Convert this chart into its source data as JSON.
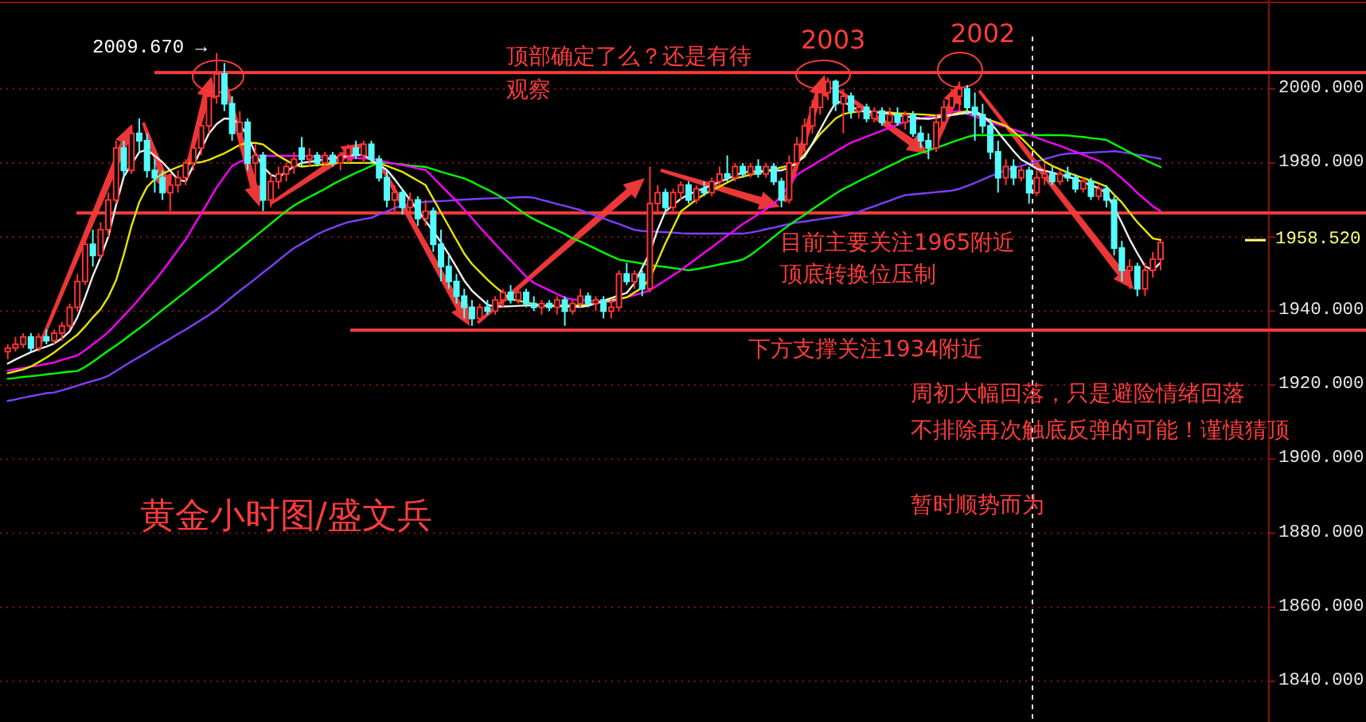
{
  "chart_data": {
    "type": "candlestick",
    "title": "黄金小时图/盛文兵",
    "categories": [
      null,
      null,
      null,
      null,
      null,
      null,
      null,
      null,
      null,
      null,
      null,
      null,
      null,
      null,
      null,
      null,
      null,
      null,
      null,
      null,
      null,
      null,
      null,
      null,
      null,
      null,
      null,
      null,
      null,
      null,
      null,
      null,
      null,
      null,
      null,
      null,
      null,
      null,
      null,
      null,
      null,
      null,
      null,
      null,
      null,
      null,
      null,
      null,
      null,
      null,
      null,
      null,
      null,
      null,
      null,
      null,
      null,
      null,
      null,
      null,
      null,
      null,
      null,
      null,
      null,
      null,
      null,
      null,
      null,
      null,
      null,
      null,
      null,
      null,
      null,
      null,
      null,
      null,
      null,
      null,
      null,
      null,
      null,
      null,
      null,
      null,
      null,
      null,
      null,
      null,
      null,
      null,
      null,
      null,
      null,
      null,
      null,
      null,
      null,
      null,
      null,
      null,
      null,
      null,
      null,
      null,
      null,
      null,
      null,
      null,
      null,
      null,
      null,
      null,
      null,
      null,
      null,
      null,
      null,
      null,
      null,
      null,
      null,
      null,
      null,
      null,
      null,
      null,
      null,
      null,
      null,
      null,
      null,
      null,
      null,
      null,
      null,
      null,
      null,
      null,
      null,
      null,
      null,
      null,
      null,
      null,
      null,
      null,
      null,
      null
    ],
    "ohlc": [
      [
        1929,
        1931,
        1927,
        1930
      ],
      [
        1930,
        1933,
        1929,
        1931
      ],
      [
        1931,
        1934,
        1930,
        1933
      ],
      [
        1933,
        1934,
        1929,
        1930
      ],
      [
        1930,
        1934,
        1929,
        1933
      ],
      [
        1933,
        1935,
        1931,
        1932
      ],
      [
        1932,
        1935,
        1931,
        1934
      ],
      [
        1934,
        1937,
        1932,
        1936
      ],
      [
        1936,
        1942,
        1935,
        1941
      ],
      [
        1941,
        1950,
        1940,
        1948
      ],
      [
        1948,
        1960,
        1947,
        1958
      ],
      [
        1958,
        1962,
        1952,
        1955
      ],
      [
        1955,
        1964,
        1954,
        1962
      ],
      [
        1962,
        1972,
        1960,
        1970
      ],
      [
        1970,
        1986,
        1969,
        1984
      ],
      [
        1984,
        1986,
        1976,
        1978
      ],
      [
        1978,
        1990,
        1977,
        1988
      ],
      [
        1988,
        1992,
        1983,
        1986
      ],
      [
        1986,
        1988,
        1976,
        1978
      ],
      [
        1978,
        1981,
        1972,
        1976
      ],
      [
        1976,
        1978,
        1970,
        1972
      ],
      [
        1972,
        1976,
        1967,
        1974
      ],
      [
        1974,
        1978,
        1972,
        1976
      ],
      [
        1976,
        1981,
        1974,
        1980
      ],
      [
        1980,
        1985,
        1978,
        1984
      ],
      [
        1984,
        1991,
        1982,
        1990
      ],
      [
        1990,
        2000,
        1988,
        1998
      ],
      [
        1998,
        2009.67,
        1996,
        2004
      ],
      [
        2004,
        2007,
        1994,
        1996
      ],
      [
        1996,
        1998,
        1986,
        1988
      ],
      [
        1988,
        1994,
        1984,
        1991
      ],
      [
        1991,
        1992,
        1978,
        1980
      ],
      [
        1980,
        1985,
        1974,
        1982
      ],
      [
        1982,
        1983,
        1967,
        1970
      ],
      [
        1970,
        1977,
        1968,
        1975
      ],
      [
        1975,
        1979,
        1973,
        1977
      ],
      [
        1977,
        1980,
        1975,
        1979
      ],
      [
        1979,
        1983,
        1977,
        1981
      ],
      [
        1984,
        1987,
        1979,
        1981
      ],
      [
        1981,
        1984,
        1979,
        1982
      ],
      [
        1982,
        1983,
        1979,
        1980
      ],
      [
        1980,
        1983,
        1979,
        1982
      ],
      [
        1982,
        1983,
        1979,
        1980
      ],
      [
        1980,
        1983,
        1978,
        1982
      ],
      [
        1982,
        1985,
        1980,
        1984
      ],
      [
        1984,
        1986,
        1981,
        1982
      ],
      [
        1982,
        1986,
        1980,
        1985
      ],
      [
        1985,
        1986,
        1980,
        1981
      ],
      [
        1981,
        1982,
        1975,
        1976
      ],
      [
        1976,
        1978,
        1968,
        1970
      ],
      [
        1970,
        1974,
        1966,
        1972
      ],
      [
        1972,
        1973,
        1966,
        1968
      ],
      [
        1968,
        1972,
        1966,
        1970
      ],
      [
        1970,
        1971,
        1963,
        1965
      ],
      [
        1965,
        1970,
        1963,
        1967
      ],
      [
        1967,
        1968,
        1956,
        1958
      ],
      [
        1958,
        1962,
        1948,
        1952
      ],
      [
        1952,
        1955,
        1946,
        1948
      ],
      [
        1948,
        1950,
        1942,
        1944
      ],
      [
        1944,
        1946,
        1938,
        1941
      ],
      [
        1941,
        1943,
        1936,
        1938
      ],
      [
        1938,
        1942,
        1937,
        1941
      ],
      [
        1941,
        1943,
        1939,
        1940
      ],
      [
        1940,
        1944,
        1939,
        1943
      ],
      [
        1943,
        1946,
        1941,
        1945
      ],
      [
        1945,
        1947,
        1942,
        1943
      ],
      [
        1943,
        1946,
        1942,
        1945
      ],
      [
        1945,
        1946,
        1941,
        1942
      ],
      [
        1942,
        1944,
        1940,
        1941
      ],
      [
        1941,
        1943,
        1939,
        1942
      ],
      [
        1942,
        1943,
        1940,
        1941
      ],
      [
        1941,
        1944,
        1939,
        1943
      ],
      [
        1943,
        1944,
        1936,
        1940
      ],
      [
        1940,
        1943,
        1939,
        1942
      ],
      [
        1942,
        1946,
        1941,
        1944
      ],
      [
        1944,
        1945,
        1941,
        1942
      ],
      [
        1942,
        1944,
        1940,
        1943
      ],
      [
        1943,
        1944,
        1938,
        1940
      ],
      [
        1940,
        1943,
        1938,
        1941
      ],
      [
        1941,
        1951,
        1940,
        1950
      ],
      [
        1950,
        1953,
        1947,
        1948
      ],
      [
        1948,
        1951,
        1946,
        1950
      ],
      [
        1950,
        1951,
        1944,
        1946
      ],
      [
        1946,
        1979,
        1945,
        1969
      ],
      [
        1969,
        1974,
        1966,
        1972
      ],
      [
        1972,
        1973,
        1966,
        1968
      ],
      [
        1968,
        1973,
        1967,
        1972
      ],
      [
        1972,
        1975,
        1970,
        1974
      ],
      [
        1974,
        1975,
        1969,
        1970
      ],
      [
        1970,
        1974,
        1969,
        1973
      ],
      [
        1973,
        1975,
        1971,
        1972
      ],
      [
        1972,
        1976,
        1971,
        1975
      ],
      [
        1975,
        1979,
        1974,
        1977
      ],
      [
        1977,
        1982,
        1975,
        1976
      ],
      [
        1976,
        1980,
        1975,
        1979
      ],
      [
        1979,
        1980,
        1976,
        1977
      ],
      [
        1977,
        1980,
        1976,
        1979
      ],
      [
        1979,
        1981,
        1976,
        1977
      ],
      [
        1977,
        1980,
        1976,
        1979
      ],
      [
        1979,
        1980,
        1974,
        1975
      ],
      [
        1975,
        1976,
        1968,
        1970
      ],
      [
        1970,
        1982,
        1969,
        1980
      ],
      [
        1980,
        1987,
        1978,
        1985
      ],
      [
        1985,
        1992,
        1983,
        1990
      ],
      [
        1990,
        1997,
        1988,
        1995
      ],
      [
        1995,
        2001,
        1993,
        1999
      ],
      [
        1999,
        2003,
        1997,
        2002
      ],
      [
        2002,
        2002.5,
        1994,
        1996
      ],
      [
        1996,
        2000,
        1988,
        1998
      ],
      [
        1998,
        1999,
        1992,
        1994
      ],
      [
        1994,
        1996,
        1992,
        1995
      ],
      [
        1995,
        1996,
        1991,
        1992
      ],
      [
        1992,
        1995,
        1991,
        1994
      ],
      [
        1994,
        1995,
        1990,
        1991
      ],
      [
        1991,
        1995,
        1990,
        1993
      ],
      [
        1993,
        1995,
        1990,
        1991
      ],
      [
        1991,
        1994,
        1989,
        1993
      ],
      [
        1993,
        1994,
        1987,
        1988
      ],
      [
        1988,
        1990,
        1984,
        1986
      ],
      [
        1986,
        1988,
        1981,
        1984
      ],
      [
        1984,
        1993,
        1983,
        1991
      ],
      [
        1991,
        1997,
        1989,
        1995
      ],
      [
        1995,
        2000,
        1993,
        1998
      ],
      [
        1998,
        2002,
        1994,
        2000
      ],
      [
        2000,
        2001,
        1993,
        1995
      ],
      [
        1995,
        1999,
        1986,
        1993
      ],
      [
        1993,
        1996,
        1988,
        1990
      ],
      [
        1990,
        1992,
        1981,
        1983
      ],
      [
        1983,
        1986,
        1972,
        1976
      ],
      [
        1976,
        1981,
        1974,
        1979
      ],
      [
        1979,
        1981,
        1974,
        1976
      ],
      [
        1976,
        1979,
        1975,
        1978
      ],
      [
        1978,
        1979,
        1969,
        1972
      ],
      [
        1972,
        1978,
        1971,
        1976
      ],
      [
        1976,
        1980,
        1974,
        1977
      ],
      [
        1977,
        1979,
        1974,
        1975
      ],
      [
        1975,
        1978,
        1974,
        1977
      ],
      [
        1977,
        1979,
        1975,
        1976
      ],
      [
        1976,
        1977,
        1972,
        1973
      ],
      [
        1973,
        1976,
        1972,
        1975
      ],
      [
        1975,
        1976,
        1970,
        1971
      ],
      [
        1971,
        1974,
        1970,
        1973
      ],
      [
        1973,
        1974,
        1968,
        1970
      ],
      [
        1970,
        1971,
        1955,
        1957
      ],
      [
        1957,
        1959,
        1948,
        1951
      ],
      [
        1951,
        1954,
        1946,
        1952
      ],
      [
        1952,
        1953,
        1944,
        1946
      ],
      [
        1946,
        1953,
        1944,
        1951
      ],
      [
        1951,
        1956,
        1949,
        1954
      ],
      [
        1954,
        1959,
        1951,
        1958.52
      ]
    ],
    "series": [
      {
        "type": "line",
        "color": "#7f3fff",
        "values": [
          1915.7,
          1916.1,
          1916.6,
          1917,
          1917.4,
          1917.8,
          1918,
          1918.6,
          1919.2,
          1919.8,
          1920.5,
          1921.1,
          1921.7,
          1922.5,
          1923.8,
          1925.1,
          1926.4,
          1927.6,
          1928.8,
          1930.1,
          1931.3,
          1932.5,
          1933.8,
          1935,
          1936.3,
          1937.6,
          1938.9,
          1940.4,
          1942.1,
          1943.8,
          1945.5,
          1947.1,
          1948.7,
          1950.4,
          1952,
          1953.7,
          1955.4,
          1957,
          1958.2,
          1959.4,
          1960.7,
          1961.7,
          1962.5,
          1963.3,
          1964,
          1964.4,
          1964.8,
          1965.2,
          1966.1,
          1966.9,
          1967.8,
          1968.5,
          1968.8,
          1969.2,
          1969.5,
          1969.6,
          1969.7,
          1969.8,
          1970,
          1970.1,
          1970.2,
          1970.3,
          1970.4,
          1970.5,
          1970.5,
          1970.6,
          1970.7,
          1970.8,
          1970.6,
          1970,
          1969.5,
          1968.9,
          1968.4,
          1967.8,
          1967.3,
          1966.5,
          1965.7,
          1965,
          1964.2,
          1963.5,
          1962.7,
          1961.9,
          1961.6,
          1961.5,
          1961.4,
          1961.3,
          1961.2,
          1961,
          1960.9,
          1960.9,
          1960.9,
          1960.9,
          1960.9,
          1960.9,
          1960.9,
          1960.9,
          1961.2,
          1961.6,
          1962.1,
          1962.5,
          1963,
          1963.5,
          1963.9,
          1964.2,
          1964.5,
          1964.8,
          1965.1,
          1965.4,
          1965.7,
          1966.1,
          1966.8,
          1967.6,
          1968.3,
          1969.1,
          1969.8,
          1970.6,
          1971.3,
          1971.5,
          1971.7,
          1971.9,
          1972.1,
          1972.3,
          1972.5,
          1973,
          1973.8,
          1974.6,
          1975.5,
          1976.4,
          1977.2,
          1978,
          1978.6,
          1979.2,
          1979.8,
          1980.4,
          1981,
          1981.6,
          1982.2,
          1982.5,
          1982.6,
          1982.7,
          1982.8,
          1982.9,
          1983,
          1983.2,
          1982.9,
          1982.6,
          1982.2,
          1981.9,
          1981.5,
          1981.1
        ]
      },
      {
        "type": "line",
        "color": "#00ff00",
        "values": [
          1921.7,
          1921.9,
          1922.2,
          1922.4,
          1922.6,
          1922.9,
          1923.1,
          1923.4,
          1923.6,
          1923.8,
          1924.9,
          1926.3,
          1927.8,
          1929.3,
          1930.7,
          1932.2,
          1933.8,
          1935.3,
          1936.9,
          1938.6,
          1940.3,
          1941.9,
          1943.6,
          1945.2,
          1946.9,
          1948.5,
          1950.2,
          1951.8,
          1953.5,
          1955.1,
          1956.8,
          1958.5,
          1960.2,
          1961.9,
          1963.6,
          1965.3,
          1967,
          1968.5,
          1969.7,
          1970.8,
          1971.9,
          1973,
          1974.2,
          1975.3,
          1976.3,
          1977.3,
          1978.2,
          1979.2,
          1980.1,
          1980,
          1979.8,
          1979.6,
          1979.3,
          1979.1,
          1978.9,
          1978.3,
          1977.6,
          1977,
          1976.4,
          1975.8,
          1974.9,
          1973.8,
          1972.8,
          1971.7,
          1970.5,
          1969,
          1967.5,
          1966,
          1964.8,
          1963.8,
          1962.8,
          1961.8,
          1960.8,
          1959.6,
          1958.8,
          1957.8,
          1956.8,
          1955.8,
          1954.8,
          1953.9,
          1953.5,
          1953.2,
          1952.8,
          1952.4,
          1952.2,
          1951.9,
          1951.6,
          1951.3,
          1951,
          1951.3,
          1951.7,
          1952.1,
          1952.6,
          1953,
          1953.4,
          1953.9,
          1955.1,
          1956.7,
          1958.3,
          1960,
          1961.7,
          1963.2,
          1964.6,
          1966,
          1967.5,
          1968.9,
          1970.3,
          1971.7,
          1973,
          1974,
          1975.1,
          1976.1,
          1977.1,
          1978.2,
          1979.2,
          1980.2,
          1981.3,
          1982,
          1982.7,
          1983.4,
          1984.1,
          1984.8,
          1985.6,
          1986.3,
          1987,
          1987.5,
          1987.5,
          1987.5,
          1987.5,
          1987.5,
          1987.5,
          1987.5,
          1987.5,
          1987.5,
          1987.5,
          1987.5,
          1987.5,
          1987.4,
          1987.2,
          1987,
          1986.7,
          1986.5,
          1986.2,
          1985.1,
          1984,
          1982.9,
          1981.8,
          1980.8,
          1979.8,
          1978.9
        ]
      },
      {
        "type": "line",
        "color": "#ff00ff",
        "values": [
          1923.9,
          1924.3,
          1924.6,
          1925,
          1925.3,
          1925.7,
          1926.1,
          1926.8,
          1927.4,
          1928,
          1929.4,
          1931,
          1932.6,
          1934.3,
          1936.5,
          1938.7,
          1940.9,
          1943.3,
          1945.8,
          1948.2,
          1950.8,
          1953.6,
          1956.5,
          1959.3,
          1962.8,
          1966.3,
          1969.8,
          1973.4,
          1976.3,
          1979.2,
          1980.3,
          1981.1,
          1981.9,
          1981.9,
          1981.9,
          1981.9,
          1981.9,
          1981.9,
          1981.9,
          1981.8,
          1981.7,
          1981.6,
          1981.5,
          1981.4,
          1981.4,
          1981.3,
          1981.2,
          1981.1,
          1980.7,
          1980.2,
          1979.8,
          1979.4,
          1979,
          1978.5,
          1978.1,
          1976,
          1973.9,
          1971.8,
          1969.7,
          1967.4,
          1965.1,
          1962.7,
          1960.4,
          1958.1,
          1955.9,
          1953.7,
          1951.5,
          1949.3,
          1947.6,
          1946.6,
          1945.6,
          1944.6,
          1943.6,
          1943.1,
          1943,
          1942.8,
          1942.7,
          1942.6,
          1942.4,
          1943.1,
          1943.7,
          1944.3,
          1944.9,
          1945.6,
          1947,
          1948.3,
          1949.7,
          1951,
          1952.6,
          1954.1,
          1955.7,
          1957.2,
          1958.8,
          1960.4,
          1961.9,
          1963.5,
          1964.8,
          1966.1,
          1967.5,
          1968.9,
          1971.2,
          1974,
          1976.8,
          1978.1,
          1979.3,
          1980.6,
          1981.8,
          1983.1,
          1984.3,
          1985.5,
          1986.3,
          1987.1,
          1987.9,
          1988.7,
          1989.5,
          1990.3,
          1991.1,
          1991.5,
          1992,
          1992.4,
          1992.9,
          1993.3,
          1993.8,
          1994,
          1993.3,
          1992.5,
          1991.8,
          1991,
          1990.3,
          1989.8,
          1989,
          1988.3,
          1987.5,
          1986.8,
          1986,
          1985.3,
          1984.6,
          1983.8,
          1983,
          1982.2,
          1981.4,
          1980.6,
          1979.4,
          1977.6,
          1975.8,
          1974,
          1971.9,
          1970.1,
          1968.3,
          1967
        ]
      },
      {
        "type": "line",
        "color": "#e6e600",
        "values": [
          1923.2,
          1923.7,
          1924.2,
          1925,
          1926.2,
          1927.4,
          1928.8,
          1930.4,
          1932,
          1933.6,
          1935.8,
          1938.3,
          1940.5,
          1943.8,
          1948.3,
          1955.2,
          1963,
          1969.4,
          1973.5,
          1975.6,
          1977.1,
          1978,
          1978.9,
          1979.7,
          1980,
          1980.2,
          1980.8,
          1981.7,
          1982.6,
          1983.7,
          1984.9,
          1985.4,
          1985.4,
          1985,
          1983.4,
          1981.9,
          1980.7,
          1979.5,
          1979,
          1979.2,
          1979.4,
          1979.6,
          1979.9,
          1980,
          1980,
          1980,
          1980,
          1980,
          1979.9,
          1979.2,
          1978.4,
          1977.6,
          1976.4,
          1975.2,
          1974,
          1970.3,
          1966.6,
          1962.9,
          1959.2,
          1955.5,
          1952.7,
          1950.6,
          1948.5,
          1946.6,
          1944.9,
          1943.2,
          1942.8,
          1942.3,
          1941.9,
          1941.5,
          1941.5,
          1941.5,
          1941.5,
          1941.5,
          1941.5,
          1941.7,
          1942.1,
          1942.5,
          1942.9,
          1943.3,
          1943.7,
          1945,
          1946.3,
          1948.8,
          1953.5,
          1958.3,
          1962.6,
          1966.9,
          1968.5,
          1970.1,
          1971.5,
          1972.6,
          1973.6,
          1974.7,
          1975.8,
          1976.3,
          1976.8,
          1977.3,
          1977.8,
          1978.3,
          1978.8,
          1979.3,
          1979.8,
          1982.4,
          1985,
          1987.8,
          1989.9,
          1992,
          1993.2,
          1993.6,
          1993.9,
          1993.9,
          1993.8,
          1993.7,
          1993.6,
          1993.4,
          1993.3,
          1993.2,
          1993.1,
          1993,
          1992.8,
          1992.7,
          1993.1,
          1993.6,
          1994,
          1993.3,
          1992.4,
          1991.5,
          1990.8,
          1990,
          1988.5,
          1986.7,
          1984.6,
          1982.4,
          1980.4,
          1979.2,
          1978.3,
          1977.4,
          1976.6,
          1975.9,
          1975.2,
          1974.5,
          1973.6,
          1971.4,
          1969.3,
          1966.6,
          1964,
          1961.8,
          1959.6,
          1959.2
        ]
      },
      {
        "type": "line",
        "color": "#f0f0f0",
        "values": [
          1925.8,
          1926.9,
          1927.9,
          1928.9,
          1929.7,
          1930.4,
          1931.2,
          1932.6,
          1934.5,
          1938.3,
          1943.7,
          1949.5,
          1954.4,
          1960.1,
          1968.6,
          1976.3,
          1979.6,
          1982.9,
          1983.6,
          1981.9,
          1980.2,
          1977.9,
          1975.5,
          1975,
          1979.3,
          1983.6,
          1987.9,
          1990.5,
          1992,
          1991.9,
          1990.4,
          1987.3,
          1982.6,
          1979,
          1976.8,
          1976.1,
          1977.6,
          1979.1,
          1980,
          1980.3,
          1980.6,
          1981,
          1981.3,
          1981.6,
          1981.9,
          1982.2,
          1982.1,
          1980.8,
          1979.5,
          1978.1,
          1975.6,
          1972.8,
          1970,
          1967.1,
          1964.3,
          1961.5,
          1958.6,
          1955.3,
          1951.8,
          1948.2,
          1945.5,
          1943.6,
          1941.7,
          1941.2,
          1941.2,
          1941.3,
          1941.4,
          1941.5,
          1941.5,
          1941.4,
          1941.4,
          1941.3,
          1941.3,
          1941.2,
          1941.1,
          1941.4,
          1942.1,
          1942.8,
          1943.5,
          1944.2,
          1944.9,
          1947.5,
          1951.7,
          1955.8,
          1962,
          1966.9,
          1968.6,
          1970.3,
          1971.5,
          1972.3,
          1973.2,
          1974,
          1974.9,
          1975.7,
          1976.6,
          1977.4,
          1977.7,
          1977.7,
          1977.9,
          1977.9,
          1978,
          1978.7,
          1980.2,
          1981.7,
          1985.2,
          1989,
          1992.8,
          1996.3,
          1996.5,
          1995.4,
          1994.1,
          1993.9,
          1993.7,
          1993.5,
          1993.2,
          1992.9,
          1992.6,
          1992.3,
          1992,
          1991.9,
          1992.2,
          1992.6,
          1992.9,
          1993.2,
          1993.5,
          1993.9,
          1992.9,
          1990.9,
          1988.3,
          1985.7,
          1983.2,
          1980.9,
          1979.7,
          1978.4,
          1977.9,
          1977.4,
          1976.8,
          1976.3,
          1975.6,
          1974.8,
          1974,
          1973.2,
          1971.8,
          1967.9,
          1963.8,
          1959.4,
          1955.6,
          1952.1,
          1951,
          1953.1
        ]
      }
    ],
    "ylim": [
      1829,
      2024
    ],
    "yticks": [
      {
        "value": 1840,
        "label": "1840.000"
      },
      {
        "value": 1860,
        "label": "1860.000"
      },
      {
        "value": 1880,
        "label": "1880.000"
      },
      {
        "value": 1900,
        "label": "1900.000"
      },
      {
        "value": 1920,
        "label": "1920.000"
      },
      {
        "value": 1940,
        "label": "1940.000"
      },
      {
        "value": 1960,
        "label": null
      },
      {
        "value": 1980,
        "label": "1980.000"
      },
      {
        "value": 2000,
        "label": "2000.000"
      }
    ],
    "tick_labels": "y",
    "grid": "y",
    "ref_lines": [
      {
        "axis": "y",
        "value": 2004.4,
        "color": "#ff3c3c"
      },
      {
        "axis": "y",
        "value": 1966.5,
        "color": "#ff3c3c"
      },
      {
        "axis": "y",
        "value": 1934.8,
        "color": "#ff3c3c"
      }
    ],
    "annotations": [
      "2009.670 →",
      "2003",
      "2002",
      "顶部确定了么？还是有待观察",
      "目前主要关注1965附近",
      "顶底转换位压制",
      "下方支撑关注1934附近",
      "周初大幅回落，只是避险情绪回落",
      "不排除再次触底反弹的可能！谨慎猜顶",
      "暂时顺势而为",
      "1958.520"
    ]
  }
}
